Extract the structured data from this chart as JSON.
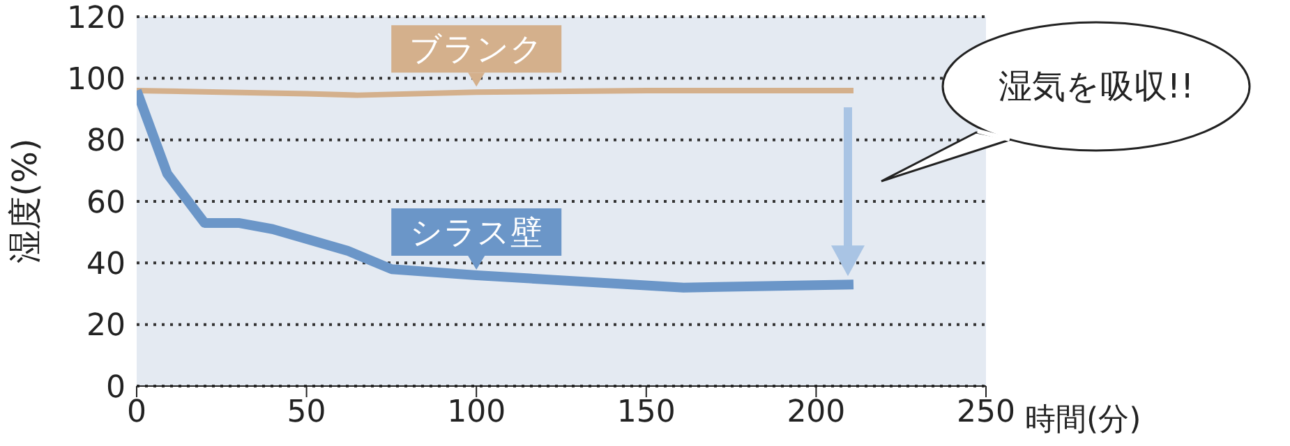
{
  "chart_data": {
    "type": "line",
    "xlabel": "時間(分)",
    "ylabel": "湿度(%)",
    "xlim": [
      0,
      250
    ],
    "xticks": [
      0,
      50,
      100,
      150,
      200,
      250
    ],
    "ylim": [
      0,
      120
    ],
    "yticks": [
      0,
      20,
      40,
      60,
      80,
      100,
      120
    ],
    "grid": "y",
    "marker": "none",
    "line_style": "solid",
    "series": [
      {
        "name": "ブランク",
        "color": "#d4b08c",
        "x": [
          0,
          25,
          50,
          65,
          100,
          150,
          211
        ],
        "values": [
          96,
          95.5,
          95,
          94.5,
          95.5,
          96,
          96
        ]
      },
      {
        "name": "シラス壁",
        "color": "#6b96c8",
        "x": [
          0,
          9,
          20,
          30,
          40,
          62,
          75,
          100,
          161,
          211
        ],
        "values": [
          96,
          69,
          53,
          53,
          51,
          44,
          38,
          36,
          32,
          33
        ]
      }
    ],
    "annotations": [
      "湿気を吸収!!"
    ]
  }
}
